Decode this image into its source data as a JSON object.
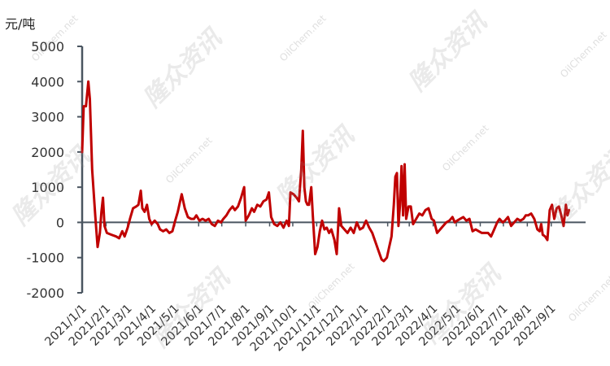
{
  "unit_label": "元/吨",
  "watermark": {
    "brand": "隆众资讯",
    "site": "OilChem.net"
  },
  "chart_data": {
    "type": "line",
    "title": "",
    "xlabel": "",
    "ylabel": "元/吨",
    "ylim": [
      -2000,
      5000
    ],
    "yticks": [
      -2000,
      -1000,
      0,
      1000,
      2000,
      3000,
      4000,
      5000
    ],
    "xlim": [
      "2021-01-01",
      "2022-10-05"
    ],
    "xticks": [
      "2021/1/1",
      "2021/2/1",
      "2021/3/1",
      "2021/4/1",
      "2021/5/1",
      "2021/6/1",
      "2021/7/1",
      "2021/8/1",
      "2021/9/1",
      "2021/10/1",
      "2021/11/1",
      "2021/12/1",
      "2022/1/1",
      "2022/2/1",
      "2022/3/1",
      "2022/4/1",
      "2022/5/1",
      "2022/6/1",
      "2022/7/1",
      "2022/8/1",
      "2022/9/1"
    ],
    "grid": false,
    "legend": "none",
    "series": [
      {
        "color": "#C00000",
        "points": [
          [
            "2021-01-01",
            2000
          ],
          [
            "2021-01-03",
            3300
          ],
          [
            "2021-01-06",
            3300
          ],
          [
            "2021-01-09",
            4000
          ],
          [
            "2021-01-11",
            3500
          ],
          [
            "2021-01-14",
            1500
          ],
          [
            "2021-01-18",
            200
          ],
          [
            "2021-01-21",
            -700
          ],
          [
            "2021-01-24",
            -300
          ],
          [
            "2021-01-26",
            300
          ],
          [
            "2021-01-28",
            700
          ],
          [
            "2021-01-30",
            -100
          ],
          [
            "2021-02-02",
            -300
          ],
          [
            "2021-02-08",
            -350
          ],
          [
            "2021-02-14",
            -400
          ],
          [
            "2021-02-18",
            -450
          ],
          [
            "2021-02-22",
            -250
          ],
          [
            "2021-02-25",
            -400
          ],
          [
            "2021-03-01",
            -150
          ],
          [
            "2021-03-04",
            100
          ],
          [
            "2021-03-08",
            400
          ],
          [
            "2021-03-12",
            450
          ],
          [
            "2021-03-15",
            500
          ],
          [
            "2021-03-18",
            900
          ],
          [
            "2021-03-20",
            400
          ],
          [
            "2021-03-23",
            300
          ],
          [
            "2021-03-26",
            500
          ],
          [
            "2021-03-29",
            100
          ],
          [
            "2021-04-01",
            -50
          ],
          [
            "2021-04-05",
            50
          ],
          [
            "2021-04-09",
            -50
          ],
          [
            "2021-04-12",
            -200
          ],
          [
            "2021-04-16",
            -250
          ],
          [
            "2021-04-20",
            -200
          ],
          [
            "2021-04-24",
            -300
          ],
          [
            "2021-04-28",
            -250
          ],
          [
            "2021-05-01",
            0
          ],
          [
            "2021-05-05",
            300
          ],
          [
            "2021-05-10",
            800
          ],
          [
            "2021-05-14",
            400
          ],
          [
            "2021-05-18",
            150
          ],
          [
            "2021-05-22",
            100
          ],
          [
            "2021-05-26",
            100
          ],
          [
            "2021-05-29",
            200
          ],
          [
            "2021-06-02",
            50
          ],
          [
            "2021-06-06",
            100
          ],
          [
            "2021-06-10",
            50
          ],
          [
            "2021-06-14",
            100
          ],
          [
            "2021-06-18",
            -50
          ],
          [
            "2021-06-22",
            -100
          ],
          [
            "2021-06-26",
            50
          ],
          [
            "2021-06-30",
            0
          ],
          [
            "2021-07-03",
            100
          ],
          [
            "2021-07-07",
            200
          ],
          [
            "2021-07-11",
            350
          ],
          [
            "2021-07-15",
            450
          ],
          [
            "2021-07-18",
            350
          ],
          [
            "2021-07-22",
            450
          ],
          [
            "2021-07-26",
            700
          ],
          [
            "2021-07-30",
            1000
          ],
          [
            "2021-08-01",
            50
          ],
          [
            "2021-08-05",
            200
          ],
          [
            "2021-08-09",
            400
          ],
          [
            "2021-08-12",
            300
          ],
          [
            "2021-08-16",
            500
          ],
          [
            "2021-08-20",
            450
          ],
          [
            "2021-08-24",
            600
          ],
          [
            "2021-08-28",
            650
          ],
          [
            "2021-08-31",
            850
          ],
          [
            "2021-09-03",
            150
          ],
          [
            "2021-09-07",
            -50
          ],
          [
            "2021-09-11",
            -100
          ],
          [
            "2021-09-15",
            0
          ],
          [
            "2021-09-19",
            -150
          ],
          [
            "2021-09-23",
            50
          ],
          [
            "2021-09-26",
            -100
          ],
          [
            "2021-09-28",
            850
          ],
          [
            "2021-10-02",
            800
          ],
          [
            "2021-10-06",
            700
          ],
          [
            "2021-10-09",
            600
          ],
          [
            "2021-10-12",
            1500
          ],
          [
            "2021-10-14",
            2600
          ],
          [
            "2021-10-16",
            1000
          ],
          [
            "2021-10-18",
            600
          ],
          [
            "2021-10-20",
            500
          ],
          [
            "2021-10-22",
            500
          ],
          [
            "2021-10-25",
            1000
          ],
          [
            "2021-10-27",
            200
          ],
          [
            "2021-10-30",
            -900
          ],
          [
            "2021-11-02",
            -700
          ],
          [
            "2021-11-05",
            -250
          ],
          [
            "2021-11-08",
            50
          ],
          [
            "2021-11-11",
            -200
          ],
          [
            "2021-11-14",
            -150
          ],
          [
            "2021-11-17",
            -300
          ],
          [
            "2021-11-20",
            -200
          ],
          [
            "2021-11-24",
            -500
          ],
          [
            "2021-11-27",
            -900
          ],
          [
            "2021-11-30",
            400
          ],
          [
            "2021-12-03",
            -100
          ],
          [
            "2021-12-07",
            -200
          ],
          [
            "2021-12-11",
            -300
          ],
          [
            "2021-12-15",
            -150
          ],
          [
            "2021-12-19",
            -300
          ],
          [
            "2021-12-23",
            0
          ],
          [
            "2021-12-27",
            -200
          ],
          [
            "2021-12-31",
            -150
          ],
          [
            "2022-01-04",
            50
          ],
          [
            "2022-01-08",
            -150
          ],
          [
            "2022-01-12",
            -300
          ],
          [
            "2022-01-16",
            -550
          ],
          [
            "2022-01-20",
            -800
          ],
          [
            "2022-01-24",
            -1050
          ],
          [
            "2022-01-27",
            -1100
          ],
          [
            "2022-01-31",
            -1000
          ],
          [
            "2022-02-03",
            -700
          ],
          [
            "2022-02-06",
            -400
          ],
          [
            "2022-02-09",
            500
          ],
          [
            "2022-02-11",
            1300
          ],
          [
            "2022-02-13",
            1400
          ],
          [
            "2022-02-15",
            -100
          ],
          [
            "2022-02-17",
            500
          ],
          [
            "2022-02-19",
            1600
          ],
          [
            "2022-02-21",
            200
          ],
          [
            "2022-02-23",
            1650
          ],
          [
            "2022-02-25",
            100
          ],
          [
            "2022-02-28",
            450
          ],
          [
            "2022-03-03",
            450
          ],
          [
            "2022-03-06",
            -50
          ],
          [
            "2022-03-10",
            100
          ],
          [
            "2022-03-14",
            250
          ],
          [
            "2022-03-18",
            200
          ],
          [
            "2022-03-22",
            350
          ],
          [
            "2022-03-26",
            400
          ],
          [
            "2022-03-30",
            100
          ],
          [
            "2022-04-02",
            50
          ],
          [
            "2022-04-06",
            -300
          ],
          [
            "2022-04-10",
            -200
          ],
          [
            "2022-04-14",
            -100
          ],
          [
            "2022-04-18",
            0
          ],
          [
            "2022-04-22",
            50
          ],
          [
            "2022-04-26",
            150
          ],
          [
            "2022-04-29",
            0
          ],
          [
            "2022-05-02",
            50
          ],
          [
            "2022-05-06",
            100
          ],
          [
            "2022-05-10",
            150
          ],
          [
            "2022-05-14",
            50
          ],
          [
            "2022-05-18",
            100
          ],
          [
            "2022-05-22",
            -250
          ],
          [
            "2022-05-26",
            -200
          ],
          [
            "2022-05-30",
            -250
          ],
          [
            "2022-06-03",
            -300
          ],
          [
            "2022-06-07",
            -300
          ],
          [
            "2022-06-11",
            -300
          ],
          [
            "2022-06-15",
            -400
          ],
          [
            "2022-06-19",
            -200
          ],
          [
            "2022-06-23",
            0
          ],
          [
            "2022-06-26",
            100
          ],
          [
            "2022-06-30",
            0
          ],
          [
            "2022-07-03",
            50
          ],
          [
            "2022-07-07",
            150
          ],
          [
            "2022-07-11",
            -100
          ],
          [
            "2022-07-15",
            0
          ],
          [
            "2022-07-19",
            100
          ],
          [
            "2022-07-23",
            50
          ],
          [
            "2022-07-27",
            100
          ],
          [
            "2022-07-30",
            200
          ],
          [
            "2022-08-02",
            200
          ],
          [
            "2022-08-06",
            250
          ],
          [
            "2022-08-10",
            100
          ],
          [
            "2022-08-14",
            -200
          ],
          [
            "2022-08-17",
            -250
          ],
          [
            "2022-08-19",
            -50
          ],
          [
            "2022-08-21",
            -350
          ],
          [
            "2022-08-24",
            -400
          ],
          [
            "2022-08-27",
            -500
          ],
          [
            "2022-08-30",
            350
          ],
          [
            "2022-09-02",
            500
          ],
          [
            "2022-09-05",
            100
          ],
          [
            "2022-09-08",
            400
          ],
          [
            "2022-09-11",
            450
          ],
          [
            "2022-09-14",
            200
          ],
          [
            "2022-09-17",
            -100
          ],
          [
            "2022-09-20",
            500
          ],
          [
            "2022-09-22",
            200
          ],
          [
            "2022-09-24",
            350
          ]
        ]
      }
    ]
  }
}
